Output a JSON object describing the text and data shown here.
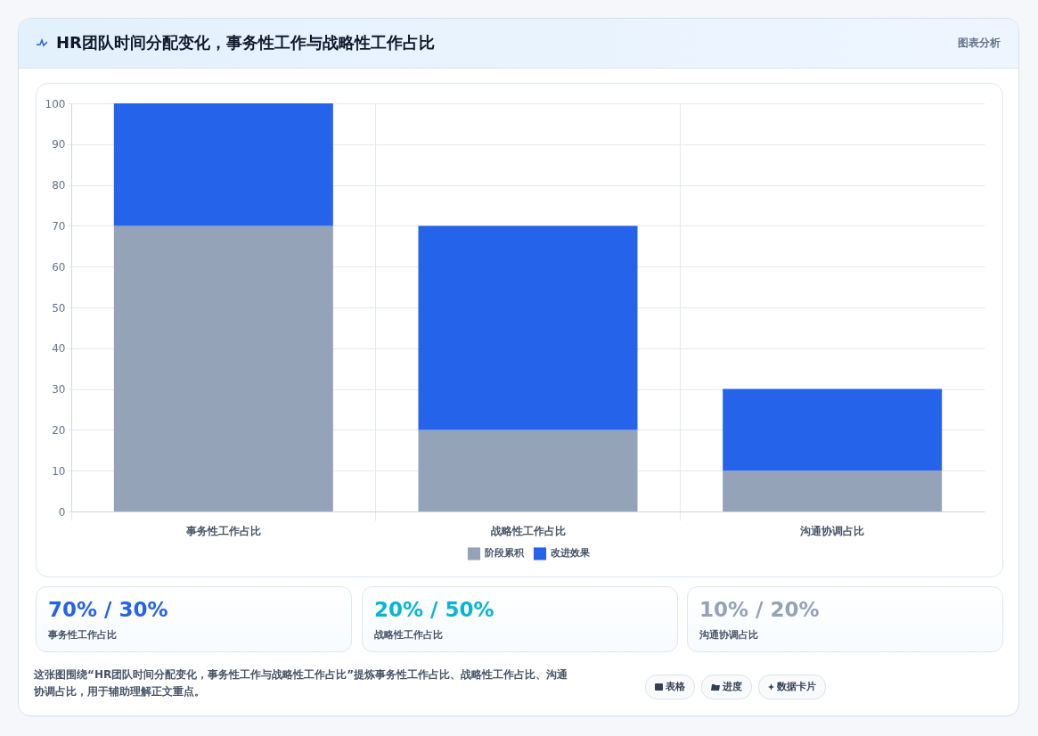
{
  "chart_data": {
    "type": "bar",
    "title": "HR团队时间分配变化，事务性工作与战略性工作占比",
    "categories": [
      "事务性工作占比",
      "战略性工作占比",
      "沟通协调占比"
    ],
    "series": [
      {
        "name": "阶段累积",
        "color": "#94a3b8",
        "values": [
          70,
          20,
          10
        ]
      },
      {
        "name": "改进效果",
        "color": "#2563eb",
        "values": [
          30,
          50,
          20
        ]
      }
    ],
    "stacked": true,
    "ylim": [
      0,
      100
    ],
    "yticks": [
      0,
      10,
      20,
      30,
      40,
      50,
      60,
      70,
      80,
      90,
      100
    ],
    "grid": true,
    "legend": "bottom",
    "annotations": [
      "图表分析",
      "70% / 30%",
      "事务性工作占比",
      "20% / 50%",
      "战略性工作占比",
      "10% / 20%",
      "沟通协调占比",
      "这张图围绕“HR团队时间分配变化，事务性工作与战略性工作占比”提炼事务性工作占比、战略性工作占比、沟通协调占比，用于辅助理解正文重点。",
      "表格",
      "进度",
      "数据卡片"
    ]
  }
}
